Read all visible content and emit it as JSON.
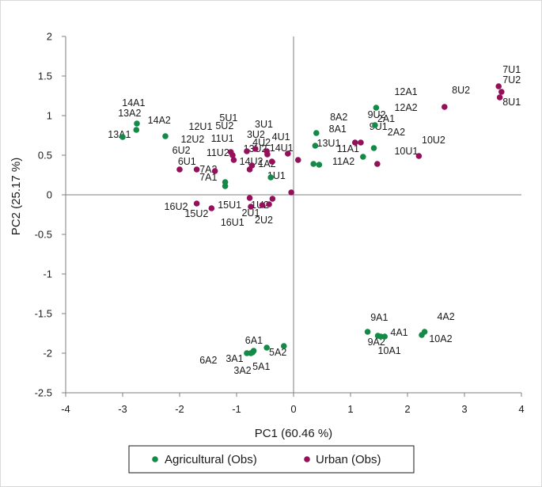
{
  "chart_data": {
    "type": "scatter",
    "xlabel": "PC1 (60.46 %)",
    "ylabel": "PC2 (25.17 %)",
    "xlim": [
      -4,
      4
    ],
    "ylim": [
      -2.5,
      2
    ],
    "xticks": [
      "-4",
      "-3",
      "-2",
      "-1",
      "0",
      "1",
      "2",
      "3",
      "4"
    ],
    "yticks": [
      "-2.5",
      "-2",
      "-1.5",
      "-1",
      "-0.5",
      "0",
      "0.5",
      "1",
      "1.5",
      "2"
    ],
    "grid": false,
    "legend_position": "bottom",
    "series": [
      {
        "name": "Agricultural (Obs)",
        "color": "#138a46",
        "points": [
          {
            "x": 1.45,
            "y": 1.1
          },
          {
            "x": 1.43,
            "y": 0.88
          },
          {
            "x": 1.41,
            "y": 0.59
          },
          {
            "x": 1.22,
            "y": 0.48
          },
          {
            "x": 0.4,
            "y": 0.78
          },
          {
            "x": 0.38,
            "y": 0.62
          },
          {
            "x": 0.45,
            "y": 0.38
          },
          {
            "x": 0.35,
            "y": 0.39
          },
          {
            "x": -2.75,
            "y": 0.9
          },
          {
            "x": -2.76,
            "y": 0.82
          },
          {
            "x": -3.0,
            "y": 0.73
          },
          {
            "x": -2.25,
            "y": 0.74
          },
          {
            "x": -1.2,
            "y": 0.16
          },
          {
            "x": -1.2,
            "y": 0.11
          },
          {
            "x": -0.4,
            "y": 0.22
          },
          {
            "x": 1.3,
            "y": -1.73
          },
          {
            "x": 1.48,
            "y": -1.78
          },
          {
            "x": 1.53,
            "y": -1.79
          },
          {
            "x": 1.6,
            "y": -1.79
          },
          {
            "x": 2.3,
            "y": -1.73
          },
          {
            "x": 2.25,
            "y": -1.77
          },
          {
            "x": -0.17,
            "y": -1.91
          },
          {
            "x": -0.47,
            "y": -1.93
          },
          {
            "x": -0.7,
            "y": -1.97
          },
          {
            "x": -0.72,
            "y": -1.99
          },
          {
            "x": -0.75,
            "y": -2.0
          },
          {
            "x": -0.82,
            "y": -2.0
          }
        ],
        "labels": [
          "12A1",
          "9U2",
          "2A1",
          "11A1",
          "8A2",
          "8A1",
          "11A2",
          "13U1",
          "14A2",
          "14A1",
          "13A1",
          "12U1",
          "7A2",
          "7A1",
          "1U1",
          "9A1",
          "4A1",
          "9A2",
          "10A1",
          "4A2",
          "10A2",
          "5A2",
          "6A1",
          "5A1",
          "3A1",
          "3A2",
          "6A2"
        ]
      },
      {
        "name": "Urban (Obs)",
        "color": "#94105a",
        "points": [
          {
            "x": 3.6,
            "y": 1.37
          },
          {
            "x": 3.65,
            "y": 1.3
          },
          {
            "x": 3.62,
            "y": 1.23
          },
          {
            "x": 2.65,
            "y": 1.11
          },
          {
            "x": 2.2,
            "y": 0.49
          },
          {
            "x": 1.08,
            "y": 0.66
          },
          {
            "x": 1.18,
            "y": 0.66
          },
          {
            "x": 1.47,
            "y": 0.39
          },
          {
            "x": -2.0,
            "y": 0.32
          },
          {
            "x": -1.7,
            "y": 0.32
          },
          {
            "x": -1.38,
            "y": 0.3
          },
          {
            "x": -1.1,
            "y": 0.54
          },
          {
            "x": -1.07,
            "y": 0.5
          },
          {
            "x": -1.05,
            "y": 0.44
          },
          {
            "x": -0.82,
            "y": 0.55
          },
          {
            "x": -0.67,
            "y": 0.58
          },
          {
            "x": -0.47,
            "y": 0.55
          },
          {
            "x": -0.46,
            "y": 0.51
          },
          {
            "x": -0.38,
            "y": 0.42
          },
          {
            "x": -0.73,
            "y": 0.37
          },
          {
            "x": -0.77,
            "y": 0.32
          },
          {
            "x": -0.1,
            "y": 0.52
          },
          {
            "x": 0.08,
            "y": 0.44
          },
          {
            "x": -0.04,
            "y": 0.03
          },
          {
            "x": -1.7,
            "y": -0.11
          },
          {
            "x": -1.44,
            "y": -0.17
          },
          {
            "x": -0.77,
            "y": -0.04
          },
          {
            "x": -0.75,
            "y": -0.15
          },
          {
            "x": -0.37,
            "y": -0.05
          },
          {
            "x": -0.43,
            "y": -0.12
          },
          {
            "x": -0.55,
            "y": -0.13
          }
        ],
        "labels": [
          "7U1",
          "7U2",
          "8U1",
          "8U2",
          "10U2",
          "9U1",
          "2A2",
          "10U1",
          "6U1",
          "6U2",
          "11U2",
          "12U2",
          "11U1",
          "13U2",
          "5U2",
          "3U2",
          "4U1",
          "4U2",
          "14U1",
          "14U2",
          "1A2",
          "3U1",
          "5U1",
          "12A2",
          "16U2",
          "15U2",
          "15U1",
          "16U1",
          "1U2",
          "2U1",
          "2U2"
        ]
      }
    ],
    "annotations": [
      {
        "text": "7U1",
        "x": 3.67,
        "y": 1.54
      },
      {
        "text": "7U2",
        "x": 3.67,
        "y": 1.41
      },
      {
        "text": "8U1",
        "x": 3.67,
        "y": 1.13
      },
      {
        "text": "8U2",
        "x": 2.78,
        "y": 1.28
      },
      {
        "text": "12A1",
        "x": 1.77,
        "y": 1.26
      },
      {
        "text": "12A2",
        "x": 1.77,
        "y": 1.06
      },
      {
        "text": "9U2",
        "x": 1.3,
        "y": 0.97
      },
      {
        "text": "9U1",
        "x": 1.33,
        "y": 0.82
      },
      {
        "text": "2A2",
        "x": 1.65,
        "y": 0.75
      },
      {
        "text": "2A1",
        "x": 1.47,
        "y": 0.92
      },
      {
        "text": "10U2",
        "x": 2.25,
        "y": 0.65
      },
      {
        "text": "10U1",
        "x": 1.77,
        "y": 0.51
      },
      {
        "text": "11A1",
        "x": 0.76,
        "y": 0.54
      },
      {
        "text": "11A2",
        "x": 0.68,
        "y": 0.38
      },
      {
        "text": "8A2",
        "x": 0.64,
        "y": 0.94
      },
      {
        "text": "8A1",
        "x": 0.62,
        "y": 0.79
      },
      {
        "text": "13U1",
        "x": 0.41,
        "y": 0.61
      },
      {
        "text": "14A1",
        "x": -3.01,
        "y": 1.12
      },
      {
        "text": "13A2",
        "x": -3.08,
        "y": 0.99
      },
      {
        "text": "14A2",
        "x": -2.56,
        "y": 0.9
      },
      {
        "text": "13A1",
        "x": -3.26,
        "y": 0.72
      },
      {
        "text": "12U1",
        "x": -1.84,
        "y": 0.82
      },
      {
        "text": "12U2",
        "x": -1.98,
        "y": 0.66
      },
      {
        "text": "6U2",
        "x": -2.13,
        "y": 0.52
      },
      {
        "text": "6U1",
        "x": -2.03,
        "y": 0.38
      },
      {
        "text": "11U1",
        "x": -1.45,
        "y": 0.67
      },
      {
        "text": "11U2",
        "x": -1.53,
        "y": 0.49
      },
      {
        "text": "5U1",
        "x": -1.3,
        "y": 0.93
      },
      {
        "text": "5U2",
        "x": -1.37,
        "y": 0.83
      },
      {
        "text": "3U1",
        "x": -0.68,
        "y": 0.85
      },
      {
        "text": "3U2",
        "x": -0.82,
        "y": 0.72
      },
      {
        "text": "4U1",
        "x": -0.38,
        "y": 0.69
      },
      {
        "text": "4U2",
        "x": -0.72,
        "y": 0.62
      },
      {
        "text": "13U2",
        "x": -0.88,
        "y": 0.54
      },
      {
        "text": "14U1",
        "x": -0.42,
        "y": 0.55
      },
      {
        "text": "14U2",
        "x": -0.95,
        "y": 0.38
      },
      {
        "text": "1A2",
        "x": -0.62,
        "y": 0.35
      },
      {
        "text": "7A2",
        "x": -1.65,
        "y": 0.28
      },
      {
        "text": "7A1",
        "x": -1.65,
        "y": 0.18
      },
      {
        "text": "1U1",
        "x": -0.46,
        "y": 0.2
      },
      {
        "text": "16U2",
        "x": -2.27,
        "y": -0.19
      },
      {
        "text": "15U2",
        "x": -1.91,
        "y": -0.28
      },
      {
        "text": "15U1",
        "x": -1.33,
        "y": -0.17
      },
      {
        "text": "1U2",
        "x": -0.75,
        "y": -0.17
      },
      {
        "text": "2U1",
        "x": -0.91,
        "y": -0.27
      },
      {
        "text": "2U2",
        "x": -0.68,
        "y": -0.36
      },
      {
        "text": "16U1",
        "x": -1.28,
        "y": -0.39
      },
      {
        "text": "9A1",
        "x": 1.35,
        "y": -1.59
      },
      {
        "text": "4A2",
        "x": 2.52,
        "y": -1.58
      },
      {
        "text": "4A1",
        "x": 1.7,
        "y": -1.78
      },
      {
        "text": "10A2",
        "x": 2.38,
        "y": -1.86
      },
      {
        "text": "9A2",
        "x": 1.3,
        "y": -1.9
      },
      {
        "text": "10A1",
        "x": 1.48,
        "y": -2.01
      },
      {
        "text": "6A1",
        "x": -0.85,
        "y": -1.88
      },
      {
        "text": "5A2",
        "x": -0.43,
        "y": -2.03
      },
      {
        "text": "3A1",
        "x": -1.19,
        "y": -2.11
      },
      {
        "text": "6A2",
        "x": -1.65,
        "y": -2.13
      },
      {
        "text": "5A1",
        "x": -0.72,
        "y": -2.21
      },
      {
        "text": "3A2",
        "x": -1.05,
        "y": -2.26
      }
    ]
  }
}
